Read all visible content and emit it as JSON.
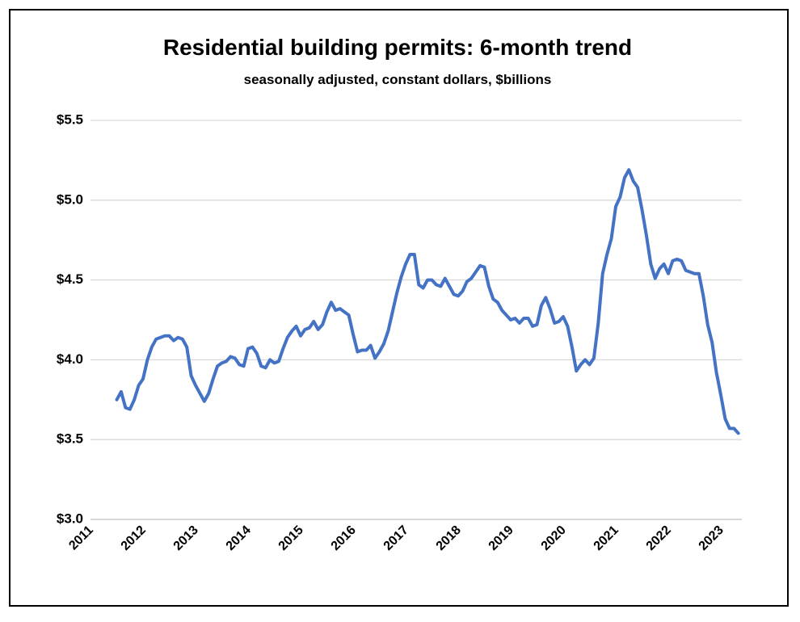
{
  "chart_data": {
    "type": "line",
    "title": "Residential building permits: 6-month trend",
    "subtitle": "seasonally adjusted, constant dollars, $billions",
    "categories": [
      "2011",
      null,
      null,
      null,
      null,
      null,
      null,
      null,
      null,
      null,
      null,
      null,
      "2012",
      null,
      null,
      null,
      null,
      null,
      null,
      null,
      null,
      null,
      null,
      null,
      "2013",
      null,
      null,
      null,
      null,
      null,
      null,
      null,
      null,
      null,
      null,
      null,
      "2014",
      null,
      null,
      null,
      null,
      null,
      null,
      null,
      null,
      null,
      null,
      null,
      "2015",
      null,
      null,
      null,
      null,
      null,
      null,
      null,
      null,
      null,
      null,
      null,
      "2016",
      null,
      null,
      null,
      null,
      null,
      null,
      null,
      null,
      null,
      null,
      null,
      "2017",
      null,
      null,
      null,
      null,
      null,
      null,
      null,
      null,
      null,
      null,
      null,
      "2018",
      null,
      null,
      null,
      null,
      null,
      null,
      null,
      null,
      null,
      null,
      null,
      "2019",
      null,
      null,
      null,
      null,
      null,
      null,
      null,
      null,
      null,
      null,
      null,
      "2020",
      null,
      null,
      null,
      null,
      null,
      null,
      null,
      null,
      null,
      null,
      null,
      "2021",
      null,
      null,
      null,
      null,
      null,
      null,
      null,
      null,
      null,
      null,
      null,
      "2022",
      null,
      null,
      null,
      null,
      null,
      null,
      null,
      null,
      null,
      null,
      null,
      "2023",
      null,
      null,
      null,
      null
    ],
    "series": [
      {
        "color": "#4472c4",
        "values": [
          null,
          null,
          null,
          null,
          null,
          null,
          3.75,
          3.8,
          3.7,
          3.69,
          3.75,
          3.84,
          3.88,
          4.0,
          4.08,
          4.13,
          4.14,
          4.15,
          4.15,
          4.12,
          4.14,
          4.13,
          4.08,
          3.9,
          3.84,
          3.79,
          3.74,
          3.79,
          3.88,
          3.96,
          3.98,
          3.99,
          4.02,
          4.01,
          3.97,
          3.96,
          4.07,
          4.08,
          4.04,
          3.96,
          3.95,
          4.0,
          3.98,
          3.99,
          4.07,
          4.14,
          4.18,
          4.21,
          4.15,
          4.19,
          4.2,
          4.24,
          4.19,
          4.22,
          4.3,
          4.36,
          4.31,
          4.32,
          4.3,
          4.28,
          4.16,
          4.05,
          4.06,
          4.06,
          4.09,
          4.01,
          4.05,
          4.1,
          4.18,
          4.3,
          4.42,
          4.52,
          4.6,
          4.66,
          4.66,
          4.47,
          4.45,
          4.5,
          4.5,
          4.47,
          4.46,
          4.51,
          4.46,
          4.41,
          4.4,
          4.43,
          4.49,
          4.51,
          4.55,
          4.59,
          4.58,
          4.46,
          4.38,
          4.36,
          4.31,
          4.28,
          4.25,
          4.26,
          4.23,
          4.26,
          4.26,
          4.21,
          4.22,
          4.34,
          4.39,
          4.32,
          4.23,
          4.24,
          4.27,
          4.21,
          4.08,
          3.93,
          3.97,
          4.0,
          3.97,
          4.01,
          4.23,
          4.54,
          4.66,
          4.76,
          4.96,
          5.02,
          5.14,
          5.19,
          5.12,
          5.08,
          4.94,
          4.78,
          4.6,
          4.51,
          4.57,
          4.6,
          4.54,
          4.62,
          4.63,
          4.62,
          4.56,
          4.55,
          4.54,
          4.54,
          4.4,
          4.22,
          4.11,
          3.92,
          3.78,
          3.63,
          3.57,
          3.57,
          3.54
        ]
      }
    ],
    "ylim": [
      3.0,
      5.5
    ],
    "yticks": [
      {
        "value": 3.0,
        "label": "$3.0"
      },
      {
        "value": 3.5,
        "label": "$3.5"
      },
      {
        "value": 4.0,
        "label": "$4.0"
      },
      {
        "value": 4.5,
        "label": "$4.5"
      },
      {
        "value": 5.0,
        "label": "$5.0"
      },
      {
        "value": 5.5,
        "label": "$5.5"
      }
    ],
    "grid": true
  }
}
